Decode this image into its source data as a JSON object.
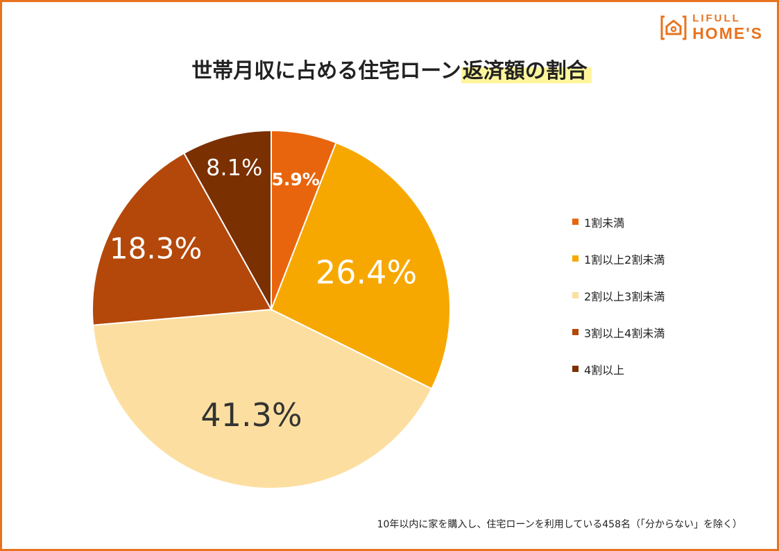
{
  "logo": {
    "line1": "LIFULL",
    "line2": "HOME'S",
    "color": "#E8731E"
  },
  "title": {
    "main": "世帯月収に占める住宅ローン",
    "highlight": "返済額の割合"
  },
  "chart_data": {
    "type": "pie",
    "categories": [
      "1割未満",
      "1割以上2割未満",
      "2割以上3割未満",
      "3割以上4割未満",
      "4割以上"
    ],
    "values": [
      5.9,
      26.4,
      41.3,
      18.3,
      8.1
    ],
    "labels": [
      "5.9%",
      "26.4%",
      "41.3%",
      "18.3%",
      "8.1%"
    ],
    "colors": [
      "#E8650D",
      "#F7A800",
      "#FCDFA0",
      "#B4480A",
      "#7A3000"
    ],
    "label_colors": [
      "#ffffff",
      "#ffffff",
      "#333333",
      "#ffffff",
      "#ffffff"
    ],
    "start": "12 o'clock, clockwise",
    "legend_position": "right"
  },
  "footnote": "10年以内に家を購入し、住宅ローンを利用している458名（「分からない」を除く）"
}
